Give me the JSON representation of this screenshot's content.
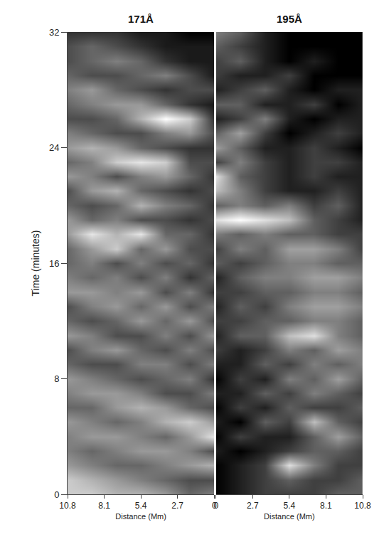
{
  "chart_data": [
    {
      "type": "heatmap",
      "title": "171Å",
      "xlabel": "Distance (Mm)",
      "ylabel": "Time (minutes)",
      "x": [
        0,
        1.8,
        3.6,
        5.4,
        7.2,
        9,
        10.8
      ],
      "y": [
        0,
        1,
        2,
        3,
        4,
        5,
        6,
        7,
        8,
        9,
        10,
        11,
        12,
        13,
        14,
        15,
        16,
        17,
        18,
        19,
        20,
        21,
        22,
        23,
        24,
        25,
        26,
        27,
        28,
        29,
        30,
        31,
        32
      ],
      "xlim": [
        10.8,
        0
      ],
      "xticks": [
        10.8,
        8.1,
        5.4,
        2.7,
        0
      ],
      "ylim": [
        0,
        32
      ],
      "yticks": [
        0,
        8,
        16,
        24,
        32
      ],
      "cells": [
        [
          0.5,
          0.4,
          0.6,
          0.7,
          0.7,
          0.8,
          0.8
        ],
        [
          0.3,
          0.3,
          0.4,
          0.5,
          0.6,
          0.7,
          0.8
        ],
        [
          0.7,
          0.6,
          0.5,
          0.4,
          0.4,
          0.5,
          0.6
        ],
        [
          0.3,
          0.5,
          0.6,
          0.6,
          0.5,
          0.4,
          0.5
        ],
        [
          0.9,
          0.6,
          0.4,
          0.5,
          0.6,
          0.6,
          0.5
        ],
        [
          0.6,
          0.8,
          0.7,
          0.5,
          0.4,
          0.5,
          0.6
        ],
        [
          0.3,
          0.4,
          0.6,
          0.7,
          0.6,
          0.4,
          0.4
        ],
        [
          0.5,
          0.3,
          0.3,
          0.5,
          0.6,
          0.6,
          0.5
        ],
        [
          0.2,
          0.5,
          0.4,
          0.3,
          0.4,
          0.5,
          0.6
        ],
        [
          0.5,
          0.3,
          0.5,
          0.5,
          0.3,
          0.3,
          0.4
        ],
        [
          0.3,
          0.5,
          0.3,
          0.4,
          0.6,
          0.5,
          0.3
        ],
        [
          0.6,
          0.3,
          0.5,
          0.3,
          0.3,
          0.5,
          0.6
        ],
        [
          0.3,
          0.6,
          0.4,
          0.6,
          0.4,
          0.3,
          0.4
        ],
        [
          0.5,
          0.3,
          0.6,
          0.4,
          0.6,
          0.5,
          0.3
        ],
        [
          0.2,
          0.5,
          0.3,
          0.6,
          0.5,
          0.6,
          0.6
        ],
        [
          0.4,
          0.2,
          0.5,
          0.3,
          0.5,
          0.4,
          0.5
        ],
        [
          0.2,
          0.4,
          0.3,
          0.5,
          0.3,
          0.5,
          0.4
        ],
        [
          0.3,
          0.3,
          0.6,
          0.4,
          0.8,
          0.6,
          0.4
        ],
        [
          0.2,
          0.4,
          0.4,
          0.9,
          0.7,
          0.9,
          0.6
        ],
        [
          0.3,
          0.2,
          0.3,
          0.3,
          0.5,
          0.4,
          0.6
        ],
        [
          0.2,
          0.4,
          0.5,
          0.7,
          0.4,
          0.3,
          0.4
        ],
        [
          0.3,
          0.2,
          0.3,
          0.4,
          0.7,
          0.6,
          0.3
        ],
        [
          0.2,
          0.4,
          0.6,
          0.5,
          0.3,
          0.5,
          0.6
        ],
        [
          0.3,
          0.3,
          0.8,
          0.9,
          0.8,
          0.5,
          0.4
        ],
        [
          0.2,
          0.2,
          0.3,
          0.4,
          0.6,
          0.7,
          0.6
        ],
        [
          0.3,
          0.6,
          0.5,
          0.3,
          0.3,
          0.4,
          0.5
        ],
        [
          0.2,
          0.8,
          1.0,
          0.7,
          0.4,
          0.3,
          0.3
        ],
        [
          0.1,
          0.2,
          0.4,
          0.6,
          0.6,
          0.5,
          0.4
        ],
        [
          0.3,
          0.3,
          0.2,
          0.3,
          0.4,
          0.6,
          0.5
        ],
        [
          0.1,
          0.3,
          0.5,
          0.4,
          0.3,
          0.3,
          0.4
        ],
        [
          0.1,
          0.1,
          0.2,
          0.4,
          0.5,
          0.4,
          0.3
        ],
        [
          0.1,
          0.1,
          0.1,
          0.2,
          0.3,
          0.4,
          0.3
        ],
        [
          0.0,
          0.0,
          0.1,
          0.1,
          0.2,
          0.2,
          0.2
        ]
      ]
    },
    {
      "type": "heatmap",
      "title": "195Å",
      "xlabel": "Distance (Mm)",
      "x": [
        0,
        1.8,
        3.6,
        5.4,
        7.2,
        9,
        10.8
      ],
      "y": [
        0,
        1,
        2,
        3,
        4,
        5,
        6,
        7,
        8,
        9,
        10,
        11,
        12,
        13,
        14,
        15,
        16,
        17,
        18,
        19,
        20,
        21,
        22,
        23,
        24,
        25,
        26,
        27,
        28,
        29,
        30,
        31,
        32
      ],
      "xlim": [
        0,
        10.8
      ],
      "xticks": [
        0,
        2.7,
        5.4,
        8.1,
        10.8
      ],
      "cells": [
        [
          0.2,
          0.3,
          0.4,
          0.4,
          0.4,
          0.5,
          0.5
        ],
        [
          0.2,
          0.3,
          0.4,
          0.5,
          0.4,
          0.4,
          0.5
        ],
        [
          0.2,
          0.3,
          0.4,
          0.9,
          0.6,
          0.4,
          0.4
        ],
        [
          0.3,
          0.2,
          0.3,
          0.4,
          0.5,
          0.5,
          0.4
        ],
        [
          0.2,
          0.4,
          0.3,
          0.3,
          0.5,
          0.7,
          0.5
        ],
        [
          0.3,
          0.2,
          0.5,
          0.4,
          0.8,
          0.5,
          0.4
        ],
        [
          0.2,
          0.4,
          0.3,
          0.5,
          0.4,
          0.4,
          0.5
        ],
        [
          0.3,
          0.3,
          0.5,
          0.4,
          0.6,
          0.5,
          0.4
        ],
        [
          0.2,
          0.4,
          0.3,
          0.6,
          0.5,
          0.7,
          0.5
        ],
        [
          0.3,
          0.3,
          0.5,
          0.4,
          0.6,
          0.5,
          0.6
        ],
        [
          0.4,
          0.3,
          0.4,
          0.6,
          0.5,
          0.7,
          0.6
        ],
        [
          0.3,
          0.5,
          0.5,
          0.8,
          0.9,
          0.6,
          0.5
        ],
        [
          0.4,
          0.4,
          0.5,
          0.5,
          0.6,
          0.6,
          0.5
        ],
        [
          0.3,
          0.5,
          0.4,
          0.6,
          0.7,
          0.7,
          0.6
        ],
        [
          0.4,
          0.4,
          0.5,
          0.5,
          0.6,
          0.6,
          0.5
        ],
        [
          0.3,
          0.5,
          0.6,
          0.6,
          0.7,
          0.7,
          0.6
        ],
        [
          0.5,
          0.4,
          0.5,
          0.6,
          0.6,
          0.5,
          0.5
        ],
        [
          0.4,
          0.6,
          0.5,
          0.7,
          0.7,
          0.6,
          0.4
        ],
        [
          0.6,
          0.5,
          0.6,
          0.5,
          0.5,
          0.4,
          0.4
        ],
        [
          0.9,
          1.0,
          0.9,
          0.8,
          0.5,
          0.4,
          0.3
        ],
        [
          0.5,
          0.6,
          0.5,
          0.6,
          0.4,
          0.5,
          0.3
        ],
        [
          0.8,
          0.6,
          0.4,
          0.3,
          0.3,
          0.4,
          0.3
        ],
        [
          0.9,
          0.5,
          0.4,
          0.3,
          0.4,
          0.3,
          0.3
        ],
        [
          0.4,
          0.6,
          0.4,
          0.3,
          0.4,
          0.4,
          0.3
        ],
        [
          0.7,
          0.5,
          0.3,
          0.3,
          0.4,
          0.3,
          0.2
        ],
        [
          0.5,
          0.7,
          0.4,
          0.2,
          0.3,
          0.4,
          0.3
        ],
        [
          0.3,
          0.4,
          0.6,
          0.3,
          0.2,
          0.3,
          0.3
        ],
        [
          0.5,
          0.5,
          0.3,
          0.3,
          0.4,
          0.2,
          0.3
        ],
        [
          0.3,
          0.4,
          0.5,
          0.3,
          0.2,
          0.3,
          0.3
        ],
        [
          0.4,
          0.3,
          0.3,
          0.4,
          0.2,
          0.2,
          0.2
        ],
        [
          0.4,
          0.5,
          0.3,
          0.2,
          0.3,
          0.2,
          0.2
        ],
        [
          0.5,
          0.4,
          0.3,
          0.2,
          0.2,
          0.2,
          0.2
        ],
        [
          0.6,
          0.5,
          0.3,
          0.2,
          0.2,
          0.2,
          0.2
        ]
      ]
    }
  ]
}
